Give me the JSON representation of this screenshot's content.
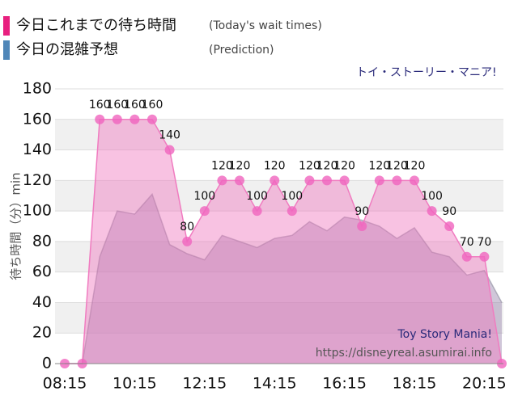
{
  "chart_data": {
    "type": "area-line",
    "title": "トイ・ストーリー・マニア!",
    "y_label": "待ち時間（分）min",
    "watermark": [
      "Toy Story Mania!",
      "https://disneyreal.asumirai.info"
    ],
    "categories": [
      "08:15",
      null,
      null,
      null,
      "10:15",
      null,
      null,
      null,
      "12:15",
      null,
      null,
      null,
      "14:15",
      null,
      null,
      null,
      "16:15",
      null,
      null,
      null,
      "18:15",
      null,
      null,
      null,
      "20:15",
      null
    ],
    "series": [
      {
        "name": "今日これまでの待ち時間",
        "description": "(Today's wait times)",
        "color": "#e8207f",
        "values": [
          0,
          0,
          160,
          160,
          160,
          160,
          140,
          80,
          100,
          120,
          120,
          100,
          120,
          100,
          120,
          120,
          120,
          90,
          120,
          120,
          120,
          100,
          90,
          70,
          70,
          0
        ]
      },
      {
        "name": "今日の混雑予想",
        "description": "(Prediction)",
        "color": "#4f86b8",
        "values": [
          0,
          0,
          70,
          100,
          98,
          111,
          78,
          72,
          68,
          84,
          80,
          76,
          82,
          84,
          93,
          87,
          96,
          94,
          90,
          82,
          89,
          73,
          70,
          58,
          61,
          40
        ]
      }
    ],
    "ylim": [
      0,
      180
    ],
    "yticks": [
      0,
      20,
      40,
      60,
      80,
      100,
      120,
      140,
      160,
      180
    ],
    "grid": true
  }
}
